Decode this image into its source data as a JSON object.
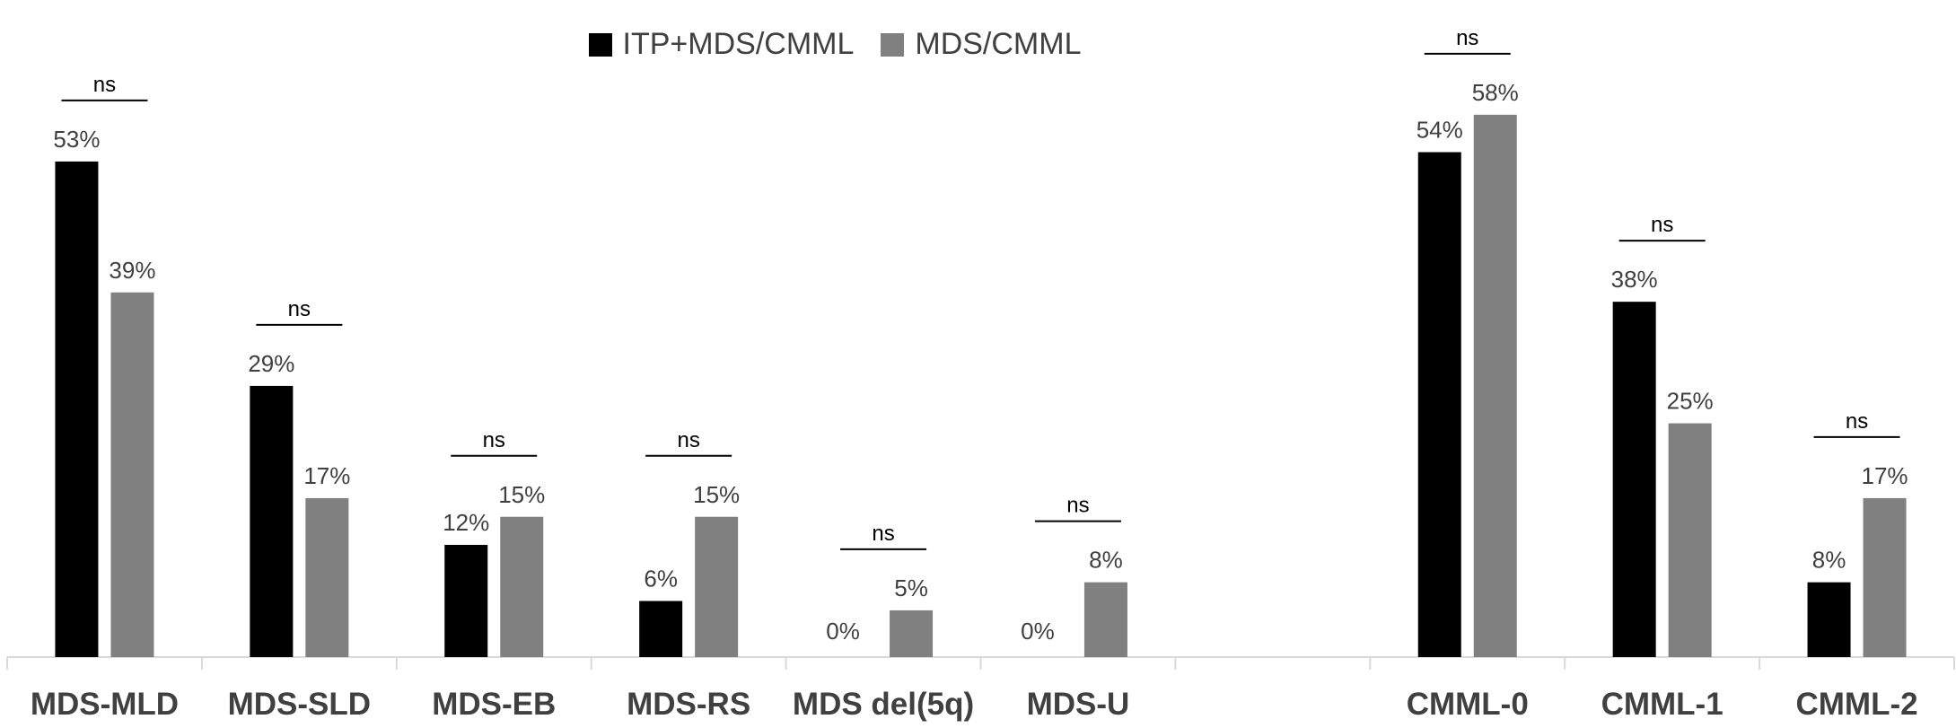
{
  "chart_data": {
    "type": "bar",
    "categories": [
      "MDS-MLD",
      "MDS-SLD",
      "MDS-EB",
      "MDS-RS",
      "MDS del(5q)",
      "MDS-U",
      "",
      "CMML-0",
      "CMML-1",
      "CMML-2"
    ],
    "series": [
      {
        "name": "ITP+MDS/CMML",
        "color": "#000000",
        "values": [
          53,
          29,
          12,
          6,
          0,
          0,
          null,
          54,
          38,
          8
        ]
      },
      {
        "name": "MDS/CMML",
        "color": "#808080",
        "values": [
          39,
          17,
          15,
          15,
          5,
          8,
          null,
          58,
          25,
          17
        ]
      }
    ],
    "data_labels": [
      [
        "53%",
        "29%",
        "12%",
        "6%",
        "0%",
        "0%",
        "",
        "54%",
        "38%",
        "8%"
      ],
      [
        "39%",
        "17%",
        "15%",
        "15%",
        "5%",
        "8%",
        "",
        "58%",
        "25%",
        "17%"
      ]
    ],
    "significance_labels": [
      "ns",
      "ns",
      "ns",
      "ns",
      "ns",
      "ns",
      "",
      "ns",
      "ns",
      "ns"
    ],
    "legend_position": "top",
    "title": "",
    "xlabel": "",
    "ylabel": "",
    "ylim": [
      0,
      60
    ],
    "grid": false,
    "colors": {
      "axis": "#d9d9d9",
      "text": "#404040"
    }
  }
}
